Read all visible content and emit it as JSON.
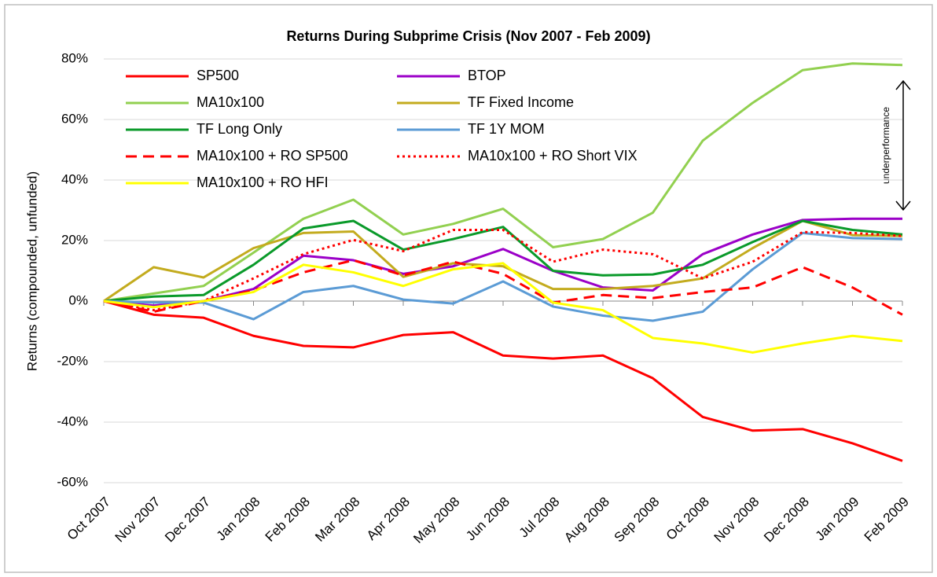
{
  "chart_data": {
    "type": "line",
    "title": "Returns During Subprime Crisis (Nov 2007 - Feb 2009)",
    "ylabel": "Returns (compounded, unfunded)",
    "annotation": "underperformance",
    "categories": [
      "Oct 2007",
      "Nov 2007",
      "Dec 2007",
      "Jan 2008",
      "Feb 2008",
      "Mar 2008",
      "Apr 2008",
      "May 2008",
      "Jun 2008",
      "Jul 2008",
      "Aug 2008",
      "Sep 2008",
      "Oct 2008",
      "Nov 2008",
      "Dec 2008",
      "Jan 2009",
      "Feb 2009"
    ],
    "ylim": [
      -60,
      80
    ],
    "yticks": [
      {
        "value": -60,
        "label": "-60%"
      },
      {
        "value": -40,
        "label": "-40%"
      },
      {
        "value": -20,
        "label": "-20%"
      },
      {
        "value": 0,
        "label": "0%"
      },
      {
        "value": 20,
        "label": "20%"
      },
      {
        "value": 40,
        "label": "40%"
      },
      {
        "value": 60,
        "label": "60%"
      },
      {
        "value": 80,
        "label": "80%"
      }
    ],
    "grid": true,
    "legend": "upper left",
    "series": [
      {
        "name": "SP500",
        "color": "#ff0000",
        "style": "solid",
        "values": [
          0,
          -4.5,
          -5.5,
          -11.5,
          -14.8,
          -15.3,
          -11.2,
          -10.3,
          -18,
          -19,
          -18,
          -25.5,
          -38.3,
          -42.8,
          -42.3,
          -47,
          -52.8
        ]
      },
      {
        "name": "BTOP",
        "color": "#9b00c8",
        "style": "solid",
        "values": [
          0,
          -1.5,
          0,
          4,
          15,
          13.5,
          9,
          11.5,
          17.2,
          10,
          4.5,
          3.5,
          15.5,
          22,
          26.8,
          27.2,
          27.2
        ]
      },
      {
        "name": "MA10x100",
        "color": "#92d050",
        "style": "solid",
        "values": [
          0,
          2.5,
          5,
          16,
          27.2,
          33.5,
          22,
          25.5,
          30.5,
          17.8,
          20.5,
          29.2,
          53,
          65.5,
          76.3,
          78.5,
          78
        ]
      },
      {
        "name": "TF Fixed Income",
        "color": "#c3ab1e",
        "style": "solid",
        "values": [
          0,
          11.2,
          7.8,
          17.5,
          22.5,
          23,
          8,
          12.5,
          11.5,
          4,
          4,
          5,
          7.5,
          17.5,
          26.5,
          21.8,
          21.5
        ]
      },
      {
        "name": "TF Long Only",
        "color": "#0a9a2a",
        "style": "solid",
        "values": [
          0,
          1.5,
          2,
          12,
          24,
          26.5,
          17,
          20.5,
          24.5,
          10,
          8.5,
          8.8,
          12,
          19.5,
          26.5,
          23.5,
          22
        ]
      },
      {
        "name": "TF 1Y MOM",
        "color": "#5b9bd5",
        "style": "solid",
        "values": [
          0,
          -0.5,
          -0.5,
          -6,
          3,
          5,
          0.5,
          -0.8,
          6.5,
          -1.8,
          -4.8,
          -6.5,
          -3.5,
          10.5,
          22.5,
          20.8,
          20.5
        ]
      },
      {
        "name": "MA10x100 + RO SP500",
        "color": "#ff0000",
        "style": "dashed",
        "values": [
          0,
          -3.5,
          0,
          3.5,
          9.5,
          13.5,
          8.5,
          13,
          9,
          -0.5,
          2,
          1,
          3,
          4.5,
          11.2,
          4.5,
          -4.5
        ]
      },
      {
        "name": "MA10x100 + RO Short VIX",
        "color": "#ff0000",
        "style": "dotted",
        "values": [
          0,
          -3,
          0,
          7.5,
          15.5,
          20.2,
          16.5,
          23.5,
          23.5,
          13,
          17,
          15.5,
          7.5,
          13,
          22.8,
          22.5,
          21.5
        ]
      },
      {
        "name": "MA10x100 + RO HFI",
        "color": "#ffff00",
        "style": "solid",
        "values": [
          0,
          -2,
          0,
          3,
          12,
          9.5,
          5,
          10.5,
          12.5,
          -0.5,
          -3,
          -12.2,
          -14,
          -17,
          -14,
          -11.5,
          -13.2
        ]
      }
    ]
  }
}
